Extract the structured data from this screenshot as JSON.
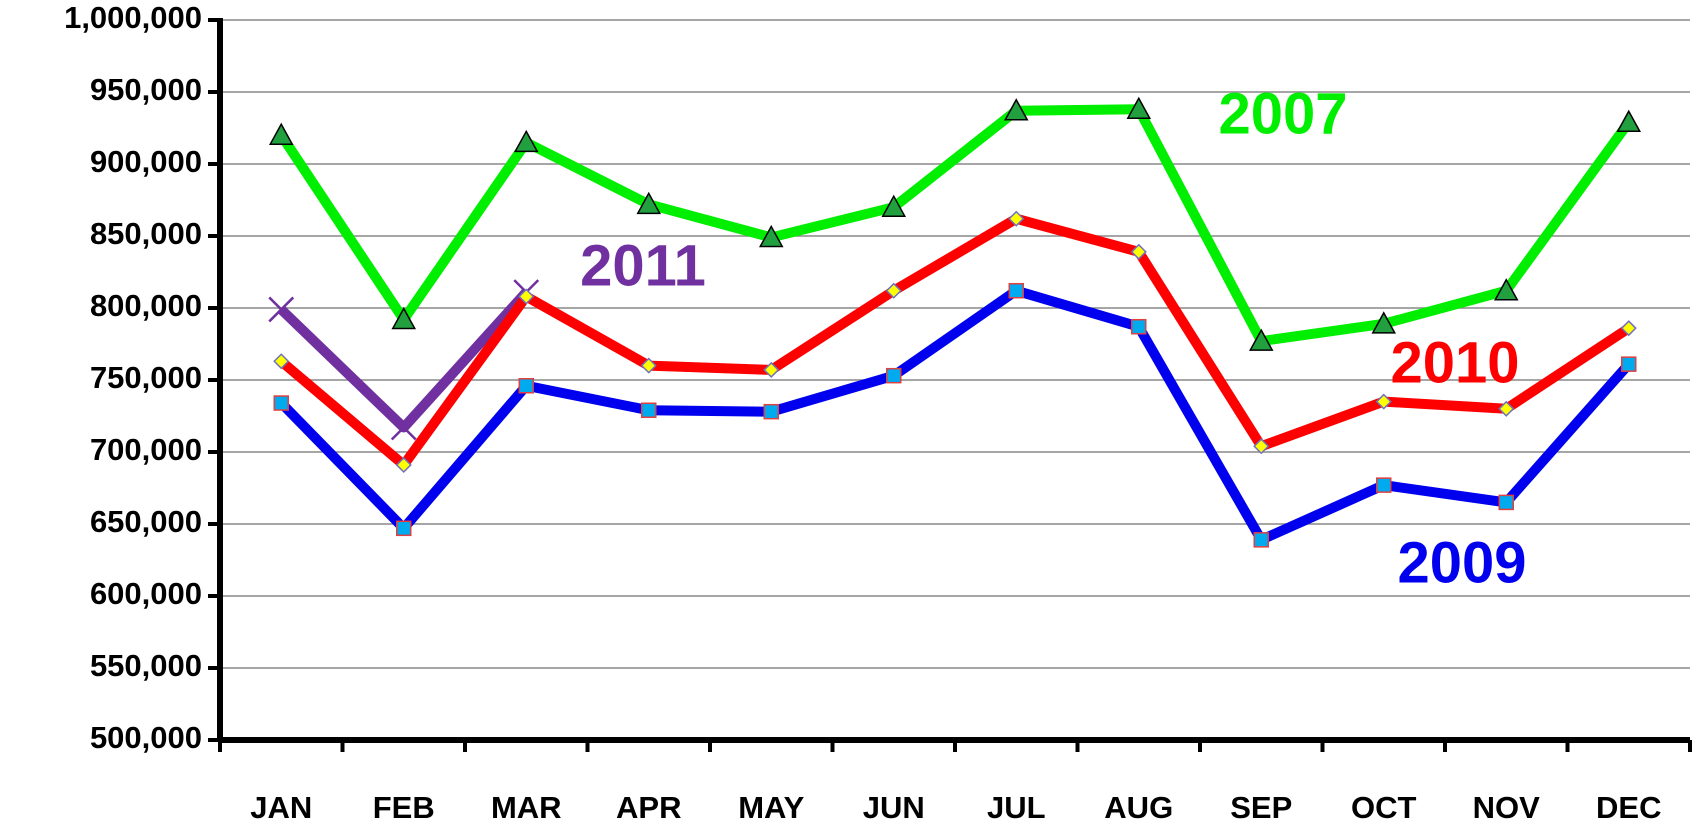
{
  "chart_data": {
    "type": "line",
    "categories": [
      "JAN",
      "FEB",
      "MAR",
      "APR",
      "MAY",
      "JUN",
      "JUL",
      "AUG",
      "SEP",
      "OCT",
      "NOV",
      "DEC"
    ],
    "series": [
      {
        "name": "2007",
        "color": "#00ee00",
        "marker": "triangle",
        "values": [
          920000,
          792000,
          915000,
          872000,
          849000,
          870000,
          937000,
          938000,
          777000,
          789000,
          812000,
          929000
        ]
      },
      {
        "name": "2009",
        "color": "#0000ee",
        "marker": "square",
        "values": [
          734000,
          647000,
          746000,
          729000,
          728000,
          753000,
          812000,
          787000,
          639000,
          677000,
          665000,
          761000
        ]
      },
      {
        "name": "2010",
        "color": "#ff0000",
        "marker": "diamond",
        "values": [
          763000,
          691000,
          808000,
          760000,
          757000,
          812000,
          862000,
          839000,
          704000,
          735000,
          730000,
          786000
        ]
      },
      {
        "name": "2011",
        "color": "#7030a0",
        "marker": "cross",
        "values": [
          799000,
          717000,
          811000,
          null,
          null,
          null,
          null,
          null,
          null,
          null,
          null,
          null
        ]
      }
    ],
    "ylim": [
      500000,
      1000000
    ],
    "yticks": [
      {
        "value": 500000,
        "label": "500,000"
      },
      {
        "value": 550000,
        "label": "550,000"
      },
      {
        "value": 600000,
        "label": "600,000"
      },
      {
        "value": 650000,
        "label": "650,000"
      },
      {
        "value": 700000,
        "label": "700,000"
      },
      {
        "value": 750000,
        "label": "750,000"
      },
      {
        "value": 800000,
        "label": "800,000"
      },
      {
        "value": 850000,
        "label": "850,000"
      },
      {
        "value": 900000,
        "label": "900,000"
      },
      {
        "value": 950000,
        "label": "950,000"
      },
      {
        "value": 1000000,
        "label": "1,000,000"
      }
    ],
    "grid": true
  }
}
